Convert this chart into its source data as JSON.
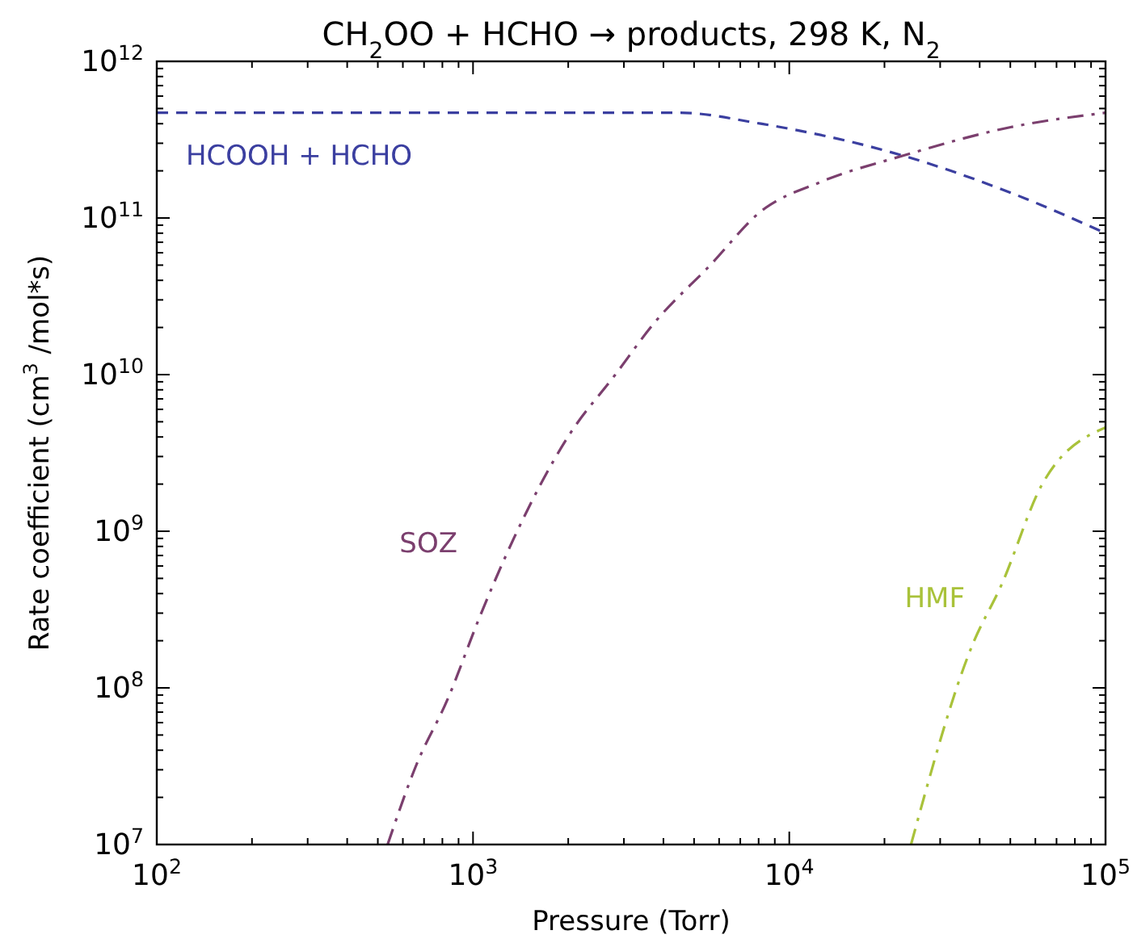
{
  "chart_data": {
    "type": "line",
    "title": "CH$_{2}$OO + HCHO → products, 298 K, N$_{2}$",
    "xlabel": "Pressure (Torr)",
    "ylabel": "Rate coefficient (cm$^{3}$ /mol*s)",
    "log": "xy",
    "grid": false,
    "marker": "none",
    "xlim": [
      100,
      100000
    ],
    "ylim": [
      10000000.0,
      1000000000000.0
    ],
    "xticks": [
      {
        "value": 100,
        "label": "10$^{2}$"
      },
      {
        "value": 200,
        "label": null
      },
      {
        "value": 300,
        "label": null
      },
      {
        "value": 400,
        "label": null
      },
      {
        "value": 500,
        "label": null
      },
      {
        "value": 600,
        "label": null
      },
      {
        "value": 700,
        "label": null
      },
      {
        "value": 800,
        "label": null
      },
      {
        "value": 900,
        "label": null
      },
      {
        "value": 1000,
        "label": "10$^{3}$"
      },
      {
        "value": 2000,
        "label": null
      },
      {
        "value": 3000,
        "label": null
      },
      {
        "value": 4000,
        "label": null
      },
      {
        "value": 5000,
        "label": null
      },
      {
        "value": 6000,
        "label": null
      },
      {
        "value": 7000,
        "label": null
      },
      {
        "value": 8000,
        "label": null
      },
      {
        "value": 9000,
        "label": null
      },
      {
        "value": 10000,
        "label": "10$^{4}$"
      },
      {
        "value": 20000,
        "label": null
      },
      {
        "value": 30000,
        "label": null
      },
      {
        "value": 40000,
        "label": null
      },
      {
        "value": 50000,
        "label": null
      },
      {
        "value": 60000,
        "label": null
      },
      {
        "value": 70000,
        "label": null
      },
      {
        "value": 80000,
        "label": null
      },
      {
        "value": 90000,
        "label": null
      },
      {
        "value": 100000,
        "label": "10$^{5}$"
      }
    ],
    "yticks": [
      {
        "value": 10000000.0,
        "label": "10$^{7}$"
      },
      {
        "value": 20000000.0,
        "label": null
      },
      {
        "value": 30000000.0,
        "label": null
      },
      {
        "value": 40000000.0,
        "label": null
      },
      {
        "value": 50000000.0,
        "label": null
      },
      {
        "value": 60000000.0,
        "label": null
      },
      {
        "value": 70000000.0,
        "label": null
      },
      {
        "value": 80000000.0,
        "label": null
      },
      {
        "value": 90000000.0,
        "label": null
      },
      {
        "value": 100000000.0,
        "label": "10$^{8}$"
      },
      {
        "value": 200000000.0,
        "label": null
      },
      {
        "value": 300000000.0,
        "label": null
      },
      {
        "value": 400000000.0,
        "label": null
      },
      {
        "value": 500000000.0,
        "label": null
      },
      {
        "value": 600000000.0,
        "label": null
      },
      {
        "value": 700000000.0,
        "label": null
      },
      {
        "value": 800000000.0,
        "label": null
      },
      {
        "value": 900000000.0,
        "label": null
      },
      {
        "value": 1000000000.0,
        "label": "10$^{9}$"
      },
      {
        "value": 2000000000.0,
        "label": null
      },
      {
        "value": 3000000000.0,
        "label": null
      },
      {
        "value": 4000000000.0,
        "label": null
      },
      {
        "value": 5000000000.0,
        "label": null
      },
      {
        "value": 6000000000.0,
        "label": null
      },
      {
        "value": 7000000000.0,
        "label": null
      },
      {
        "value": 8000000000.0,
        "label": null
      },
      {
        "value": 9000000000.0,
        "label": null
      },
      {
        "value": 10000000000.0,
        "label": "10$^{10}$"
      },
      {
        "value": 20000000000.0,
        "label": null
      },
      {
        "value": 30000000000.0,
        "label": null
      },
      {
        "value": 40000000000.0,
        "label": null
      },
      {
        "value": 50000000000.0,
        "label": null
      },
      {
        "value": 60000000000.0,
        "label": null
      },
      {
        "value": 70000000000.0,
        "label": null
      },
      {
        "value": 80000000000.0,
        "label": null
      },
      {
        "value": 90000000000.0,
        "label": null
      },
      {
        "value": 100000000000.0,
        "label": "10$^{11}$"
      },
      {
        "value": 200000000000.0,
        "label": null
      },
      {
        "value": 300000000000.0,
        "label": null
      },
      {
        "value": 400000000000.0,
        "label": null
      },
      {
        "value": 500000000000.0,
        "label": null
      },
      {
        "value": 600000000000.0,
        "label": null
      },
      {
        "value": 700000000000.0,
        "label": null
      },
      {
        "value": 800000000000.0,
        "label": null
      },
      {
        "value": 900000000000.0,
        "label": null
      },
      {
        "value": 1000000000000.0,
        "label": "10$^{12}$"
      }
    ],
    "series": [
      {
        "name": "HCOOH + HCHO",
        "color": "#3b3fa0",
        "line_style": "dashed",
        "x": [
          100,
          1000,
          3000,
          4467,
          8128,
          22909,
          50119,
          100000
        ],
        "values": [
          470000000000.0,
          470000000000.0,
          470000000000.0,
          470000000000.0,
          400000000000.0,
          250000000000.0,
          145000000000.0,
          80000000000.0
        ]
      },
      {
        "name": "SOZ",
        "color": "#7b3f6e",
        "line_style": "dashdot",
        "x": [
          537,
          661,
          832,
          1047,
          1349,
          1995,
          2818,
          3715,
          5623,
          8128,
          12589,
          22909,
          50119,
          100000
        ],
        "values": [
          10000000.0,
          32000000.0,
          85000000.0,
          280000000.0,
          910000000.0,
          4000000000.0,
          10000000000.0,
          21000000000.0,
          50000000000.0,
          110000000000.0,
          170000000000.0,
          250000000000.0,
          380000000000.0,
          470000000000.0
        ]
      },
      {
        "name": "HMF",
        "color": "#a9c23a",
        "line_style": "dashdot",
        "x": [
          24266,
          38019,
          46774,
          63096,
          100000
        ],
        "values": [
          10000000.0,
          190000000.0,
          450000000.0,
          2000000000.0,
          4600000000.0
        ]
      }
    ]
  }
}
